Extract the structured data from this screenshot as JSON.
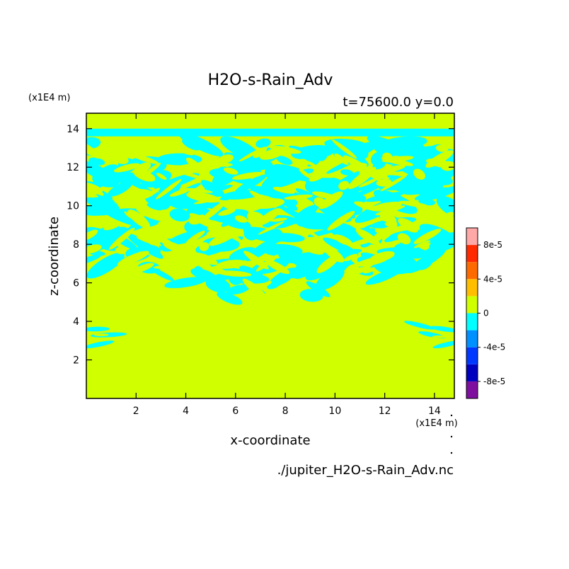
{
  "chart_data": {
    "type": "heatmap",
    "title": "H2O-s-Rain_Adv",
    "subtitle": "t=75600.0 y=0.0",
    "xlabel": "x-coordinate",
    "ylabel": "z-coordinate",
    "x_unit": "(x1E4 m)",
    "y_unit": "(x1E4 m)",
    "source_file": "./jupiter_H2O-s-Rain_Adv.nc",
    "xlim": [
      0,
      14.8
    ],
    "ylim": [
      0,
      14.8
    ],
    "x_ticks": [
      "2",
      "4",
      "6",
      "8",
      "10",
      "12",
      "14"
    ],
    "y_ticks": [
      "2",
      "4",
      "6",
      "8",
      "10",
      "12",
      "14"
    ],
    "grid": false,
    "legend_position": "right",
    "colorbar": {
      "ticks": [
        "8e-5",
        "4e-5",
        "0",
        "-4e-5",
        "-8e-5"
      ],
      "levels": [
        -0.0001,
        -8e-05,
        -6e-05,
        -4e-05,
        -2e-05,
        0,
        2e-05,
        4e-05,
        6e-05,
        8e-05,
        0.0001
      ],
      "colors": [
        "#7f0f9f",
        "#0000bf",
        "#0038ff",
        "#0090ff",
        "#00ffff",
        "#d0ff00",
        "#ffbf00",
        "#ff6a00",
        "#ff2a00",
        "#ffa8a8"
      ]
    },
    "field_description_values": {
      "background_level": "0 to 2e-5",
      "negative_patch_level": "-2e-5 to 0"
    },
    "regions": {
      "lower_uniform_band_z": [
        0,
        4.0
      ],
      "turbulent_layer_z": [
        4.5,
        13.6
      ],
      "top_band_z": [
        13.6,
        14.8
      ],
      "side_patches_z": [
        2.5,
        4.0
      ]
    }
  }
}
